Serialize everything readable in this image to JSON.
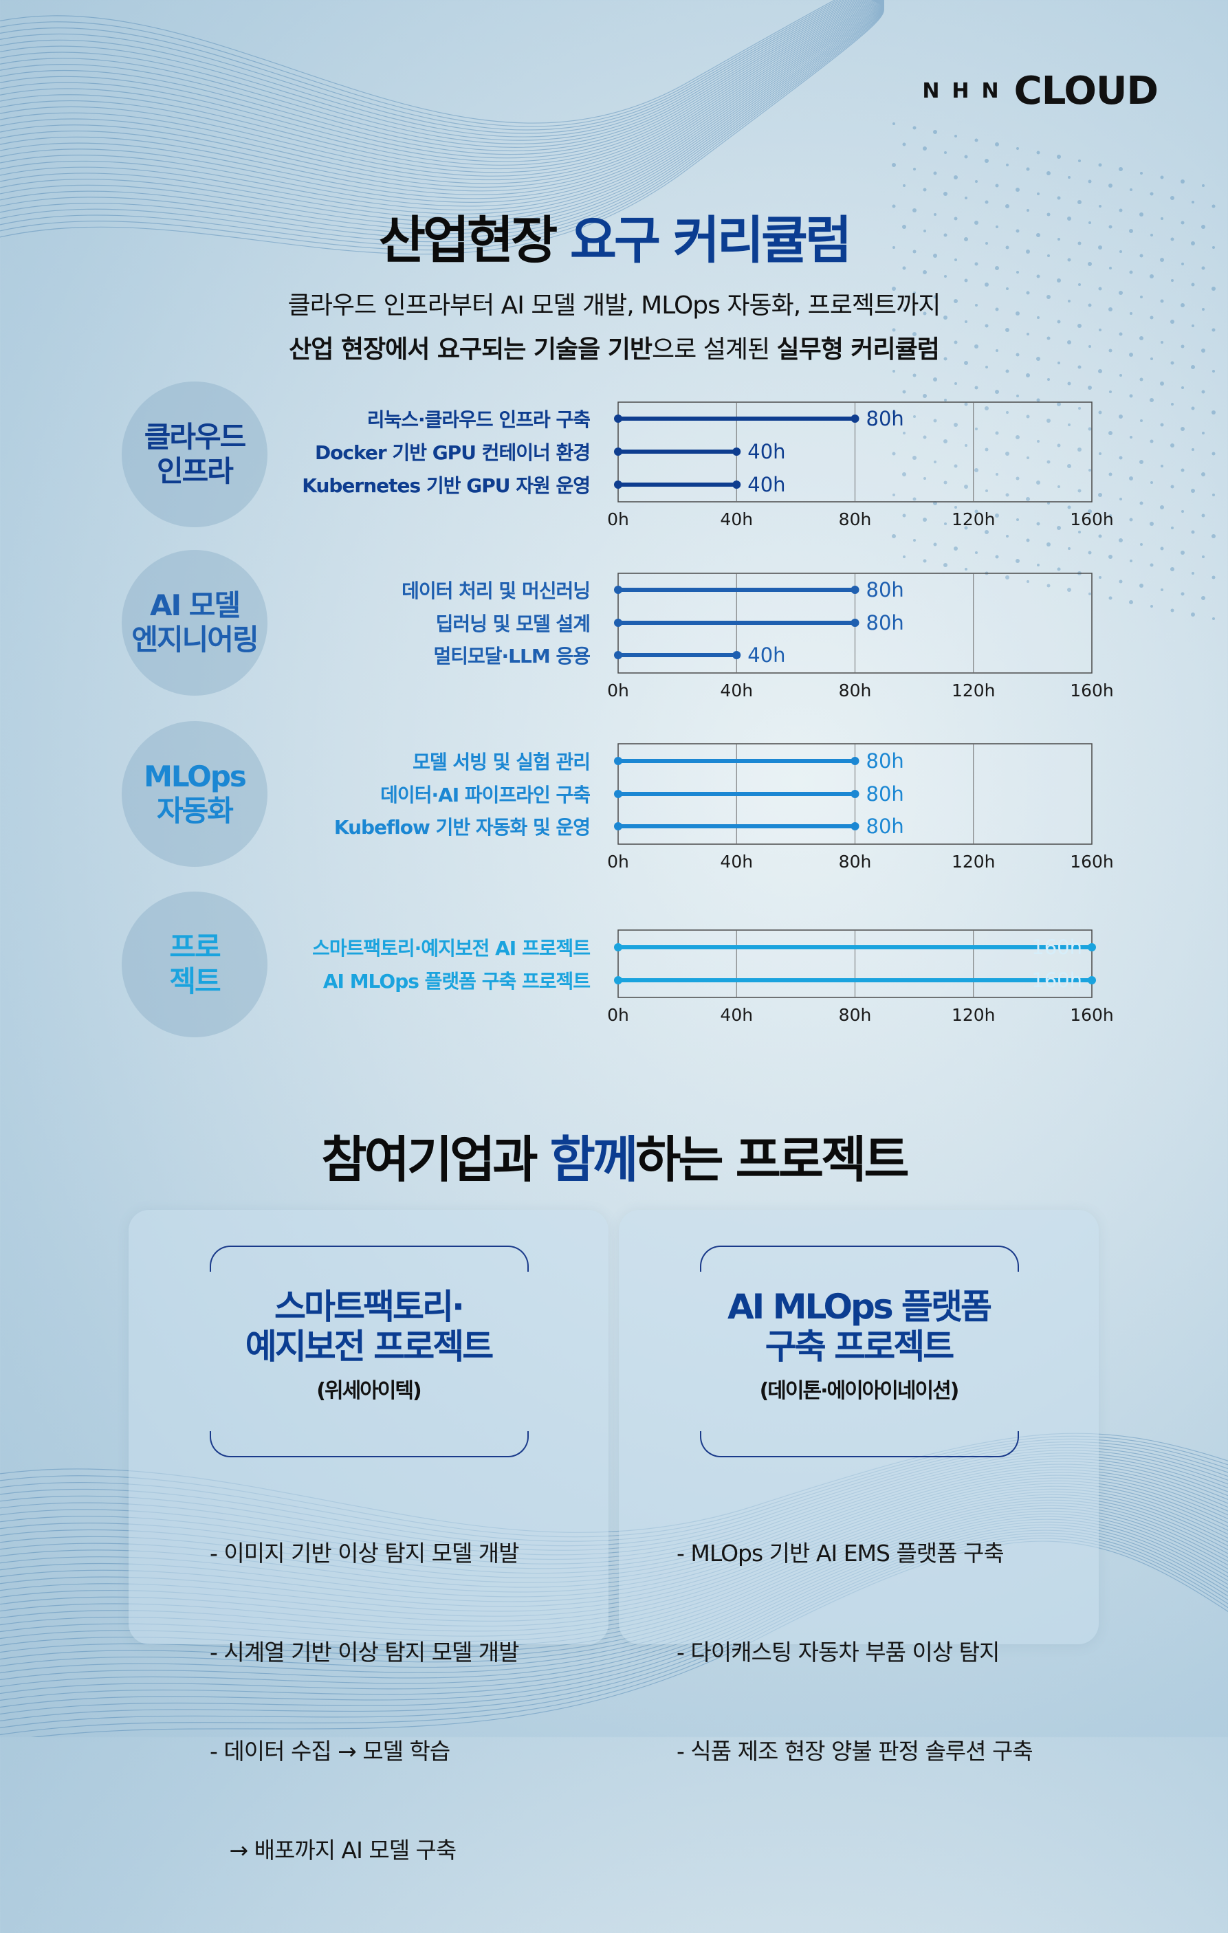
{
  "header": {
    "logo_nhn": "NHN",
    "logo_cloud": "CLOUD"
  },
  "curriculum": {
    "title_plain": "산업현장 ",
    "title_highlight": "요구 커리큘럼",
    "intro_line1": "클라우드 인프라부터 AI 모델 개발, MLOps 자동화, 프로젝트까지",
    "intro_line2": {
      "b1": "산업 현장에서 요구되는 기술을 기반",
      "t1": "으로 설계된 ",
      "b2": "실무형 커리큘럼"
    }
  },
  "chart_data": [
    {
      "type": "bar",
      "category_label": "클라우드\n인프라",
      "color": "#0e3d8f",
      "categories": [
        "리눅스·클라우드 인프라 구축",
        "Docker 기반 GPU 컨테이너 환경",
        "Kubernetes 기반 GPU 자원 운영"
      ],
      "values": [
        80,
        40,
        40
      ],
      "value_labels": [
        "80h",
        "40h",
        "40h"
      ],
      "xlim": [
        0,
        160
      ],
      "xticks": [
        "0h",
        "40h",
        "80h",
        "120h",
        "160h"
      ]
    },
    {
      "type": "bar",
      "category_label": "AI 모델\n엔지니어링",
      "color": "#1e5fb0",
      "categories": [
        "데이터 처리 및 머신러닝",
        "딥러닝 및 모델 설계",
        "멀티모달·LLM 응용"
      ],
      "values": [
        80,
        80,
        40
      ],
      "value_labels": [
        "80h",
        "80h",
        "40h"
      ],
      "xlim": [
        0,
        160
      ],
      "xticks": [
        "0h",
        "40h",
        "80h",
        "120h",
        "160h"
      ]
    },
    {
      "type": "bar",
      "category_label": "MLOps\n자동화",
      "color": "#1b87d3",
      "categories": [
        "모델 서빙 및 실험 관리",
        "데이터·AI 파이프라인 구축",
        "Kubeflow 기반 자동화 및 운영"
      ],
      "values": [
        80,
        80,
        80
      ],
      "value_labels": [
        "80h",
        "80h",
        "80h"
      ],
      "xlim": [
        0,
        160
      ],
      "xticks": [
        "0h",
        "40h",
        "80h",
        "120h",
        "160h"
      ]
    },
    {
      "type": "bar",
      "category_label": "프로\n젝트",
      "color": "#1aa3de",
      "categories": [
        "스마트팩토리·예지보전 AI 프로젝트",
        "AI MLOps 플랫폼 구축 프로젝트"
      ],
      "values": [
        160,
        160
      ],
      "value_labels": [
        "160h",
        "160h"
      ],
      "xlim": [
        0,
        160
      ],
      "xticks": [
        "0h",
        "40h",
        "80h",
        "120h",
        "160h"
      ]
    }
  ],
  "projects": {
    "title_p1": "참여기업과 ",
    "title_p2": "함께",
    "title_p3": "하는 프로젝트",
    "cards": [
      {
        "title": "스마트팩토리·\n예지보전 프로젝트",
        "company": "(위세아이텍)",
        "items": [
          "- 이미지 기반 이상 탐지 모델 개발",
          "- 시계열 기반 이상 탐지 모델 개발",
          "- 데이터 수집 → 모델 학습",
          "   → 배포까지 AI 모델 구축"
        ]
      },
      {
        "title": "AI MLOps 플랫폼\n구축 프로젝트",
        "company": "(데이톤·에이아이네이션)",
        "items": [
          "- MLOps 기반 AI EMS 플랫폼 구축",
          "- 다이캐스팅 자동차 부품 이상 탐지",
          "- 식품 제조 현장 양불 판정 솔루션 구축"
        ]
      }
    ]
  }
}
